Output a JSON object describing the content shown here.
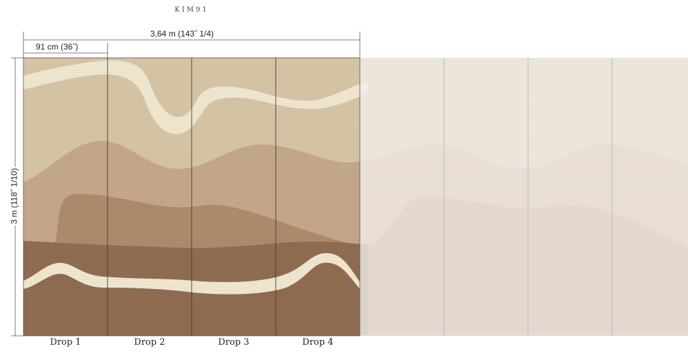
{
  "product_code": "KIM91",
  "dimensions": {
    "total_width": "3,64 m (143˝ 1/4)",
    "drop_width": "91 cm (36˝)",
    "height": "3 m (118˝ 1/10)"
  },
  "drops": [
    "Drop 1",
    "Drop 2",
    "Drop 3",
    "Drop 4"
  ],
  "colors": {
    "sand_light": "#d6c4a6",
    "sand_mid": "#c4a78a",
    "clay": "#ad8a6c",
    "earth_dark": "#8f6c52",
    "cream_ribbon": "#efe6cf",
    "faded_bg": "#ece7e3",
    "seam": "#3a3a3a",
    "dim_line": "#555555"
  }
}
